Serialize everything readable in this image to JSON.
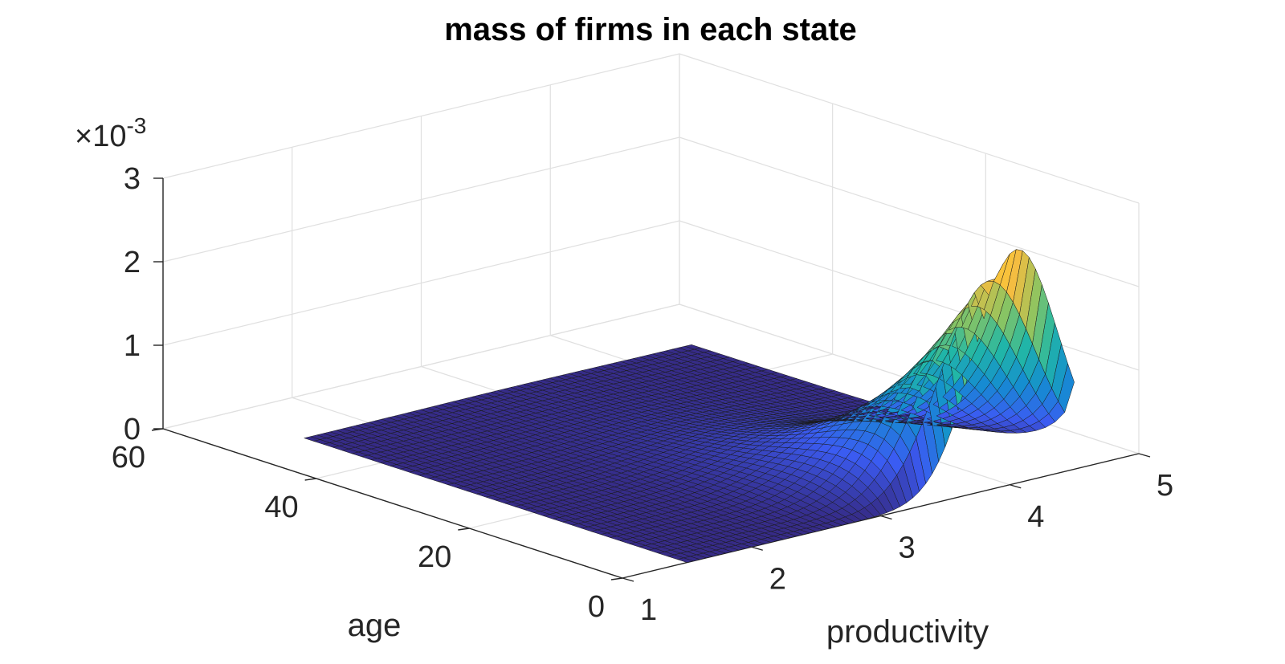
{
  "chart_data": {
    "type": "surface",
    "title": "mass of firms in each state",
    "xlabel": "productivity",
    "ylabel": "age",
    "zlabel": "",
    "z_exponent_label": "×10",
    "z_exponent_sup": "-3",
    "xlim": [
      1,
      5
    ],
    "ylim": [
      0,
      60
    ],
    "zlim": [
      0,
      0.003
    ],
    "x_ticks": [
      1,
      2,
      3,
      4,
      5
    ],
    "y_ticks": [
      0,
      20,
      40,
      60
    ],
    "z_ticks": [
      0,
      0.001,
      0.002,
      0.003
    ],
    "x_tick_labels": [
      "1",
      "2",
      "3",
      "4",
      "5"
    ],
    "y_tick_labels": [
      "0",
      "20",
      "40",
      "60"
    ],
    "z_tick_labels": [
      "0",
      "1",
      "2",
      "3"
    ],
    "grid": true,
    "colormap": "parula",
    "surface": {
      "peak_mass": 0.0028,
      "peak_productivity": 4.05,
      "peak_age": 0,
      "productivity_spread": 0.32,
      "age_decay": 9,
      "productivity_drift_per_age": 0.13,
      "productivity_range": [
        1.5,
        4.5
      ],
      "age_range": [
        0,
        50
      ]
    }
  }
}
